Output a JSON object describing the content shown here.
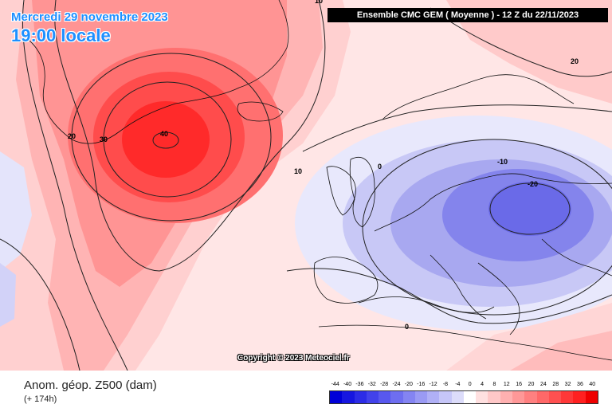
{
  "header": {
    "date": "Mercredi 29 novembre 2023",
    "time": "19:00 locale",
    "model_run": "Ensemble CMC GEM  ( Moyenne )  -  12 Z du 22/11/2023"
  },
  "copyright": "Copyright © 2023 Meteociel.fr",
  "footer": {
    "variable": "Anom. géop. Z500 (dam)",
    "lead_time": "(+ 174h)"
  },
  "legend": {
    "values": [
      "-44",
      "-40",
      "-36",
      "-32",
      "-28",
      "-24",
      "-20",
      "-16",
      "-12",
      "-8",
      "-4",
      "0",
      "4",
      "8",
      "12",
      "16",
      "20",
      "24",
      "28",
      "32",
      "36",
      "40"
    ],
    "colors": [
      "#0000d8",
      "#1616e0",
      "#2c2ce6",
      "#4242ea",
      "#5858ee",
      "#6e6ef0",
      "#8484f2",
      "#9a9af4",
      "#b0b0f6",
      "#c6c6f8",
      "#dcdcfa",
      "#ffffff",
      "#ffe0e0",
      "#ffc8c8",
      "#ffb0b0",
      "#ff9898",
      "#ff8080",
      "#ff6868",
      "#ff5050",
      "#ff3838",
      "#ff2020",
      "#ee0000"
    ]
  },
  "contour_labels": [
    "40",
    "30",
    "20",
    "10",
    "0",
    "-10",
    "-20",
    "20",
    "10",
    "0"
  ],
  "colors": {
    "accent_text": "#1e90ff",
    "positive_anomaly": "#ff2a2a",
    "negative_anomaly": "#6a6ae8"
  }
}
